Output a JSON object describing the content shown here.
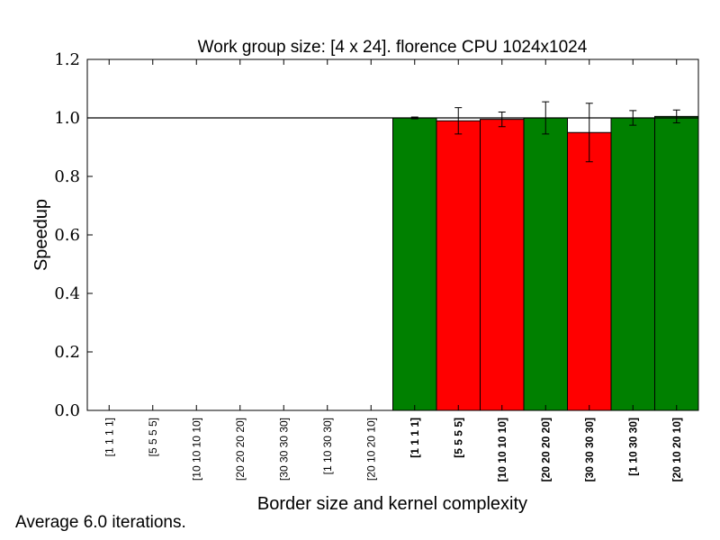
{
  "chart_data": {
    "type": "bar",
    "title": "Work group size: [4 x 24]. florence CPU 1024x1024",
    "xlabel": "Border size and kernel complexity",
    "ylabel": "Speedup",
    "ylim": [
      0.0,
      1.2
    ],
    "yticks": [
      "0.0",
      "0.2",
      "0.4",
      "0.6",
      "0.8",
      "1.0",
      "1.2"
    ],
    "reference_line": 1.0,
    "categories": [
      "[1 1 1 1]",
      "[5 5 5 5]",
      "[10 10 10 10]",
      "[20 20 20 20]",
      "[30 30 30 30]",
      "[1 10 30 30]",
      "[20 10 20 10]",
      "[1 1 1 1]",
      "[5 5 5 5]",
      "[10 10 10 10]",
      "[20 20 20 20]",
      "[30 30 30 30]",
      "[1 10 30 30]",
      "[20 10 20 10]"
    ],
    "category_bold": [
      false,
      false,
      false,
      false,
      false,
      false,
      false,
      true,
      true,
      true,
      true,
      true,
      true,
      true
    ],
    "values": [
      0,
      0,
      0,
      0,
      0,
      0,
      0,
      1.0,
      0.99,
      0.995,
      1.0,
      0.95,
      1.0,
      1.005
    ],
    "errors": [
      0,
      0,
      0,
      0,
      0,
      0,
      0,
      0.003,
      0.045,
      0.025,
      0.055,
      0.1,
      0.025,
      0.022
    ],
    "bar_colors": [
      "#ffffff",
      "#ffffff",
      "#ffffff",
      "#ffffff",
      "#ffffff",
      "#ffffff",
      "#ffffff",
      "#008000",
      "#ff0000",
      "#ff0000",
      "#008000",
      "#ff0000",
      "#008000",
      "#008000"
    ],
    "grid": false
  },
  "footnote": "Average 6.0 iterations."
}
